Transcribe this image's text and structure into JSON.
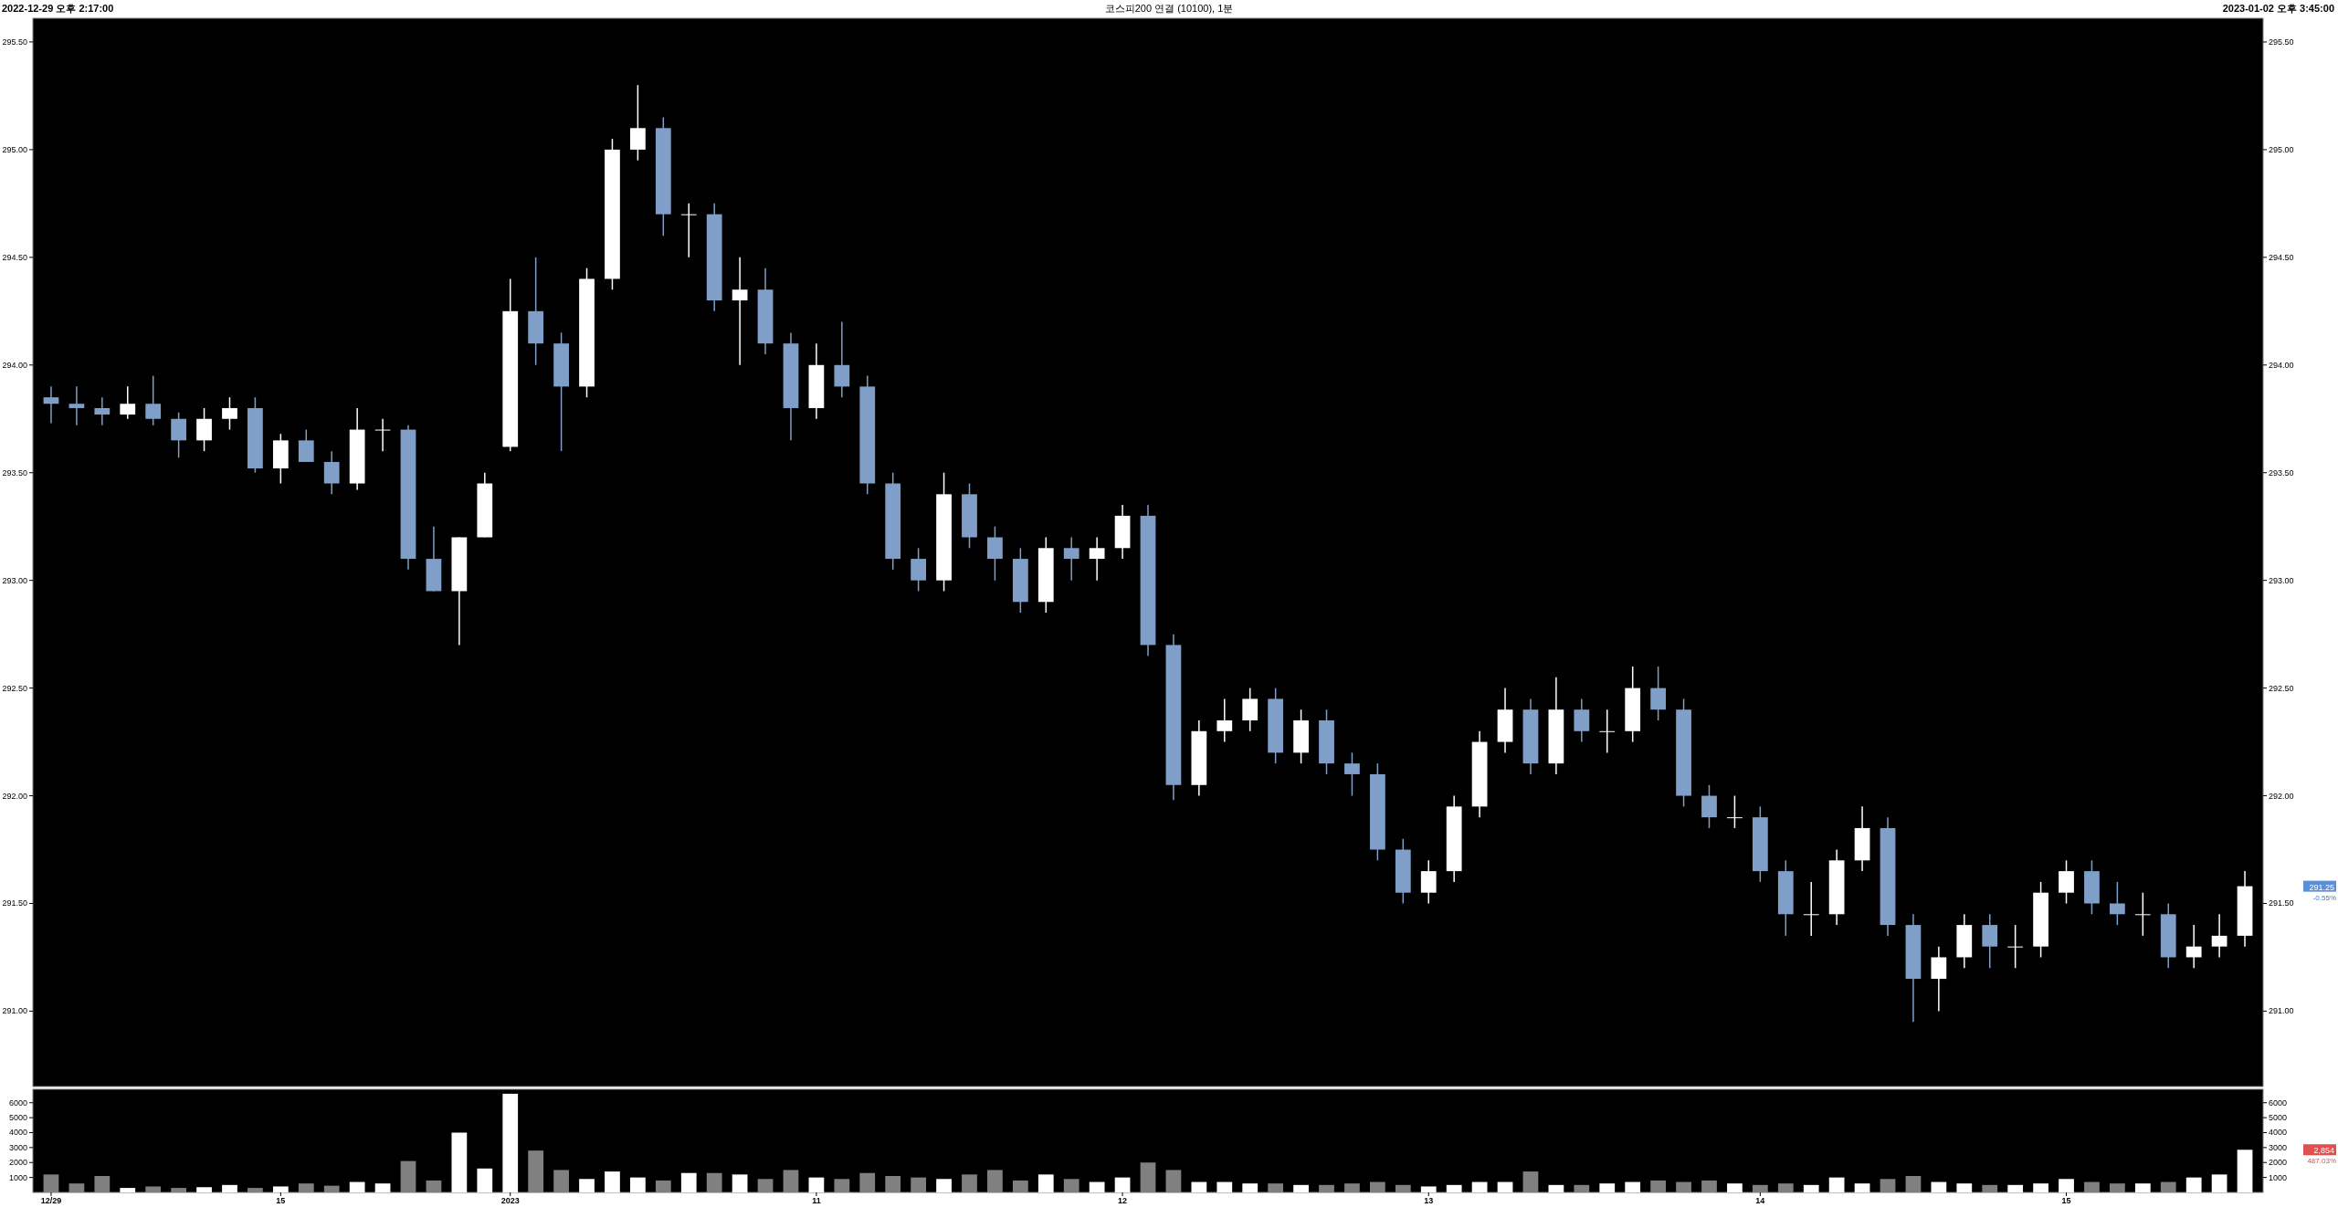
{
  "chart_data": [
    {
      "type": "candlestick",
      "title": "코스피200 연결 (10100), 1분",
      "annotations": [
        "2022-12-29 오후 2:17:00",
        "2023-01-02 오후 3:45:00",
        "291.25",
        "-0.55%"
      ],
      "ohlc": [
        [
          293.85,
          293.9,
          293.73,
          293.82
        ],
        [
          293.82,
          293.9,
          293.72,
          293.8
        ],
        [
          293.8,
          293.85,
          293.72,
          293.77
        ],
        [
          293.77,
          293.9,
          293.75,
          293.82
        ],
        [
          293.82,
          293.95,
          293.72,
          293.75
        ],
        [
          293.75,
          293.78,
          293.57,
          293.65
        ],
        [
          293.65,
          293.8,
          293.6,
          293.75
        ],
        [
          293.75,
          293.85,
          293.7,
          293.8
        ],
        [
          293.8,
          293.85,
          293.5,
          293.52
        ],
        [
          293.52,
          293.68,
          293.45,
          293.65
        ],
        [
          293.65,
          293.7,
          293.55,
          293.55
        ],
        [
          293.55,
          293.6,
          293.4,
          293.45
        ],
        [
          293.45,
          293.8,
          293.42,
          293.7
        ],
        [
          293.7,
          293.75,
          293.6,
          293.7
        ],
        [
          293.7,
          293.72,
          293.05,
          293.1
        ],
        [
          293.1,
          293.25,
          292.95,
          292.95
        ],
        [
          292.95,
          293.2,
          292.7,
          293.2
        ],
        [
          293.2,
          293.5,
          293.2,
          293.45
        ],
        [
          293.62,
          294.4,
          293.6,
          294.25
        ],
        [
          294.25,
          294.5,
          294.0,
          294.1
        ],
        [
          294.1,
          294.15,
          293.6,
          293.9
        ],
        [
          293.9,
          294.45,
          293.85,
          294.4
        ],
        [
          294.4,
          295.05,
          294.35,
          295.0
        ],
        [
          295.0,
          295.3,
          294.95,
          295.1
        ],
        [
          295.1,
          295.15,
          294.6,
          294.7
        ],
        [
          294.7,
          294.75,
          294.5,
          294.7
        ],
        [
          294.7,
          294.75,
          294.25,
          294.3
        ],
        [
          294.3,
          294.5,
          294.0,
          294.35
        ],
        [
          294.35,
          294.45,
          294.05,
          294.1
        ],
        [
          294.1,
          294.15,
          293.65,
          293.8
        ],
        [
          293.8,
          294.1,
          293.75,
          294.0
        ],
        [
          294.0,
          294.2,
          293.85,
          293.9
        ],
        [
          293.9,
          293.95,
          293.4,
          293.45
        ],
        [
          293.45,
          293.5,
          293.05,
          293.1
        ],
        [
          293.1,
          293.15,
          292.95,
          293.0
        ],
        [
          293.0,
          293.5,
          292.95,
          293.4
        ],
        [
          293.4,
          293.45,
          293.15,
          293.2
        ],
        [
          293.2,
          293.25,
          293.0,
          293.1
        ],
        [
          293.1,
          293.15,
          292.85,
          292.9
        ],
        [
          292.9,
          293.2,
          292.85,
          293.15
        ],
        [
          293.15,
          293.2,
          293.0,
          293.1
        ],
        [
          293.1,
          293.2,
          293.0,
          293.15
        ],
        [
          293.15,
          293.35,
          293.1,
          293.3
        ],
        [
          293.3,
          293.35,
          292.65,
          292.7
        ],
        [
          292.7,
          292.75,
          291.98,
          292.05
        ],
        [
          292.05,
          292.35,
          292.0,
          292.3
        ],
        [
          292.3,
          292.45,
          292.25,
          292.35
        ],
        [
          292.35,
          292.5,
          292.3,
          292.45
        ],
        [
          292.45,
          292.5,
          292.15,
          292.2
        ],
        [
          292.2,
          292.4,
          292.15,
          292.35
        ],
        [
          292.35,
          292.4,
          292.1,
          292.15
        ],
        [
          292.15,
          292.2,
          292.0,
          292.1
        ],
        [
          292.1,
          292.15,
          291.7,
          291.75
        ],
        [
          291.75,
          291.8,
          291.5,
          291.55
        ],
        [
          291.55,
          291.7,
          291.5,
          291.65
        ],
        [
          291.65,
          292.0,
          291.6,
          291.95
        ],
        [
          291.95,
          292.3,
          291.9,
          292.25
        ],
        [
          292.25,
          292.5,
          292.2,
          292.4
        ],
        [
          292.4,
          292.45,
          292.1,
          292.15
        ],
        [
          292.15,
          292.55,
          292.1,
          292.4
        ],
        [
          292.4,
          292.45,
          292.25,
          292.3
        ],
        [
          292.3,
          292.4,
          292.2,
          292.3
        ],
        [
          292.3,
          292.6,
          292.25,
          292.5
        ],
        [
          292.5,
          292.6,
          292.35,
          292.4
        ],
        [
          292.4,
          292.45,
          291.95,
          292.0
        ],
        [
          292.0,
          292.05,
          291.85,
          291.9
        ],
        [
          291.9,
          292.0,
          291.85,
          291.9
        ],
        [
          291.9,
          291.95,
          291.6,
          291.65
        ],
        [
          291.65,
          291.7,
          291.35,
          291.45
        ],
        [
          291.45,
          291.6,
          291.35,
          291.45
        ],
        [
          291.45,
          291.75,
          291.4,
          291.7
        ],
        [
          291.7,
          291.95,
          291.65,
          291.85
        ],
        [
          291.85,
          291.9,
          291.35,
          291.4
        ],
        [
          291.4,
          291.45,
          290.95,
          291.15
        ],
        [
          291.15,
          291.3,
          291.0,
          291.25
        ],
        [
          291.25,
          291.45,
          291.2,
          291.4
        ],
        [
          291.4,
          291.45,
          291.2,
          291.3
        ],
        [
          291.3,
          291.4,
          291.2,
          291.3
        ],
        [
          291.3,
          291.6,
          291.25,
          291.55
        ],
        [
          291.55,
          291.7,
          291.5,
          291.65
        ],
        [
          291.65,
          291.7,
          291.45,
          291.5
        ],
        [
          291.5,
          291.6,
          291.4,
          291.45
        ],
        [
          291.45,
          291.55,
          291.35,
          291.45
        ],
        [
          291.45,
          291.5,
          291.2,
          291.25
        ],
        [
          291.25,
          291.4,
          291.2,
          291.3
        ],
        [
          291.3,
          291.45,
          291.25,
          291.35
        ],
        [
          291.35,
          291.65,
          291.3,
          291.58
        ]
      ],
      "colors": [
        "#7f9fc8",
        "#7f9fc8",
        "#7f9fc8",
        "#ffffff",
        "#7f9fc8",
        "#7f9fc8",
        "#ffffff",
        "#ffffff",
        "#7f9fc8",
        "#ffffff",
        "#7f9fc8",
        "#7f9fc8",
        "#ffffff",
        "#ffffff",
        "#7f9fc8",
        "#7f9fc8",
        "#ffffff",
        "#ffffff",
        "#ffffff",
        "#7f9fc8",
        "#7f9fc8",
        "#ffffff",
        "#ffffff",
        "#ffffff",
        "#7f9fc8",
        "#ffffff",
        "#7f9fc8",
        "#ffffff",
        "#7f9fc8",
        "#7f9fc8",
        "#ffffff",
        "#7f9fc8",
        "#7f9fc8",
        "#7f9fc8",
        "#7f9fc8",
        "#ffffff",
        "#7f9fc8",
        "#7f9fc8",
        "#7f9fc8",
        "#ffffff",
        "#7f9fc8",
        "#ffffff",
        "#ffffff",
        "#7f9fc8",
        "#7f9fc8",
        "#ffffff",
        "#ffffff",
        "#ffffff",
        "#7f9fc8",
        "#ffffff",
        "#7f9fc8",
        "#7f9fc8",
        "#7f9fc8",
        "#7f9fc8",
        "#ffffff",
        "#ffffff",
        "#ffffff",
        "#ffffff",
        "#7f9fc8",
        "#ffffff",
        "#7f9fc8",
        "#ffffff",
        "#ffffff",
        "#7f9fc8",
        "#7f9fc8",
        "#7f9fc8",
        "#ffffff",
        "#7f9fc8",
        "#7f9fc8",
        "#ffffff",
        "#ffffff",
        "#ffffff",
        "#7f9fc8",
        "#7f9fc8",
        "#ffffff",
        "#ffffff",
        "#7f9fc8",
        "#ffffff",
        "#ffffff",
        "#ffffff",
        "#7f9fc8",
        "#7f9fc8",
        "#ffffff",
        "#7f9fc8",
        "#ffffff",
        "#ffffff",
        "#ffffff"
      ],
      "ylim": [
        290.65,
        295.61
      ],
      "yticks": [
        {
          "value": 291,
          "label": "291.00"
        },
        {
          "value": 291.5,
          "label": "291.50"
        },
        {
          "value": 292,
          "label": "292.00"
        },
        {
          "value": 292.5,
          "label": "292.50"
        },
        {
          "value": 293,
          "label": "293.00"
        },
        {
          "value": 293.5,
          "label": "293.50"
        },
        {
          "value": 294,
          "label": "294.00"
        },
        {
          "value": 294.5,
          "label": "294.50"
        },
        {
          "value": 295,
          "label": "295.00"
        },
        {
          "value": 295.5,
          "label": "295.50"
        }
      ],
      "y2lim": [
        290.65,
        295.61
      ],
      "y2ticks": [
        {
          "value": 291,
          "label": "291.00"
        },
        {
          "value": 291.5,
          "label": "291.50"
        },
        {
          "value": 292,
          "label": "292.00"
        },
        {
          "value": 292.5,
          "label": "292.50"
        },
        {
          "value": 293,
          "label": "293.00"
        },
        {
          "value": 293.5,
          "label": "293.50"
        },
        {
          "value": 294,
          "label": "294.00"
        },
        {
          "value": 294.5,
          "label": "294.50"
        },
        {
          "value": 295,
          "label": "295.00"
        },
        {
          "value": 295.5,
          "label": "295.50"
        }
      ],
      "tick_labels": "y"
    },
    {
      "type": "bar",
      "annotations": [
        "2,854",
        "487.03%"
      ],
      "categories": [
        "12/29",
        null,
        null,
        null,
        null,
        null,
        null,
        null,
        null,
        "15",
        null,
        null,
        null,
        null,
        null,
        null,
        null,
        null,
        "2023",
        null,
        null,
        null,
        null,
        null,
        null,
        null,
        null,
        null,
        null,
        null,
        "11",
        null,
        null,
        null,
        null,
        null,
        null,
        null,
        null,
        null,
        null,
        null,
        "12",
        null,
        null,
        null,
        null,
        null,
        null,
        null,
        null,
        null,
        null,
        null,
        "13",
        null,
        null,
        null,
        null,
        null,
        null,
        null,
        null,
        null,
        null,
        null,
        null,
        "14",
        null,
        null,
        null,
        null,
        null,
        null,
        null,
        null,
        null,
        null,
        null,
        "15",
        null,
        null,
        null,
        null,
        null,
        null,
        null
      ],
      "values": [
        1200,
        600,
        1100,
        300,
        400,
        300,
        350,
        500,
        300,
        400,
        600,
        450,
        700,
        600,
        2100,
        800,
        4000,
        1600,
        6600,
        2800,
        1500,
        900,
        1400,
        1000,
        800,
        1300,
        1300,
        1200,
        900,
        1500,
        1000,
        900,
        1300,
        1100,
        1000,
        900,
        1200,
        1500,
        800,
        1200,
        900,
        700,
        1000,
        2000,
        1500,
        700,
        700,
        600,
        600,
        500,
        500,
        600,
        700,
        500,
        400,
        500,
        700,
        700,
        1400,
        500,
        500,
        600,
        700,
        800,
        700,
        800,
        600,
        500,
        600,
        500,
        1000,
        600,
        900,
        1100,
        700,
        600,
        500,
        500,
        600,
        900,
        700,
        600,
        600,
        700,
        1000,
        1200,
        2854
      ],
      "colors": [
        "#808080",
        "#808080",
        "#808080",
        "#ffffff",
        "#808080",
        "#808080",
        "#ffffff",
        "#ffffff",
        "#808080",
        "#ffffff",
        "#808080",
        "#808080",
        "#ffffff",
        "#ffffff",
        "#808080",
        "#808080",
        "#ffffff",
        "#ffffff",
        "#ffffff",
        "#808080",
        "#808080",
        "#ffffff",
        "#ffffff",
        "#ffffff",
        "#808080",
        "#ffffff",
        "#808080",
        "#ffffff",
        "#808080",
        "#808080",
        "#ffffff",
        "#808080",
        "#808080",
        "#808080",
        "#808080",
        "#ffffff",
        "#808080",
        "#808080",
        "#808080",
        "#ffffff",
        "#808080",
        "#ffffff",
        "#ffffff",
        "#808080",
        "#808080",
        "#ffffff",
        "#ffffff",
        "#ffffff",
        "#808080",
        "#ffffff",
        "#808080",
        "#808080",
        "#808080",
        "#808080",
        "#ffffff",
        "#ffffff",
        "#ffffff",
        "#ffffff",
        "#808080",
        "#ffffff",
        "#808080",
        "#ffffff",
        "#ffffff",
        "#808080",
        "#808080",
        "#808080",
        "#ffffff",
        "#808080",
        "#808080",
        "#ffffff",
        "#ffffff",
        "#ffffff",
        "#808080",
        "#808080",
        "#ffffff",
        "#ffffff",
        "#808080",
        "#ffffff",
        "#ffffff",
        "#ffffff",
        "#808080",
        "#808080",
        "#ffffff",
        "#808080",
        "#ffffff",
        "#ffffff",
        "#ffffff"
      ],
      "ylim": [
        0,
        6900
      ],
      "yticks": [
        1000,
        2000,
        3000,
        4000,
        5000,
        6000
      ],
      "y2lim": [
        0,
        6900
      ],
      "y2ticks": [
        1000,
        2000,
        3000,
        4000,
        5000,
        6000
      ]
    }
  ]
}
